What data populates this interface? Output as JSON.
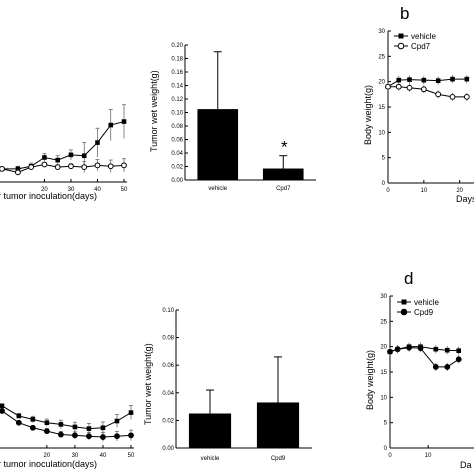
{
  "panel_letters": {
    "b": "b",
    "d": "d"
  },
  "chart_data": [
    {
      "id": "top-left-line",
      "type": "line",
      "xlabel": "r tumor inoculation(days)",
      "ylabel": "",
      "xlim": [
        4,
        50
      ],
      "ylim": [
        -0.5,
        14
      ],
      "x_ticks": [
        "20",
        "30",
        "40",
        "50"
      ],
      "series": [
        {
          "marker": "square",
          "x": [
            4,
            10,
            15,
            20,
            25,
            30,
            35,
            40,
            45,
            50
          ],
          "y": [
            1.0,
            1.0,
            1.3,
            2.3,
            2.0,
            2.6,
            2.5,
            4.0,
            6.0,
            6.4
          ]
        },
        {
          "marker": "circle",
          "x": [
            4,
            10,
            15,
            20,
            25,
            30,
            35,
            40,
            45,
            50
          ],
          "y": [
            1.0,
            0.6,
            1.2,
            1.5,
            1.2,
            1.3,
            1.2,
            1.4,
            1.3,
            1.4
          ]
        }
      ]
    },
    {
      "id": "top-bar",
      "type": "bar",
      "ylabel": "Tumor wet weight(g)",
      "ylim": [
        0,
        0.2
      ],
      "y_ticks": [
        "0.00",
        "0.02",
        "0.04",
        "0.06",
        "0.08",
        "0.10",
        "0.12",
        "0.14",
        "0.16",
        "0.18",
        "0.20"
      ],
      "categories": [
        "vehicle",
        "Cpd7"
      ],
      "values": [
        0.105,
        0.017
      ],
      "errors": [
        0.085,
        0.019
      ],
      "annotation": "*"
    },
    {
      "id": "top-right-body-weight",
      "type": "line",
      "ylabel": "Body weight(g)",
      "xlabel": "Days",
      "ylim": [
        0,
        30
      ],
      "y_ticks": [
        "0",
        "5",
        "10",
        "15",
        "20",
        "25",
        "30"
      ],
      "x_ticks": [
        "0",
        "10",
        "20"
      ],
      "legend": [
        "vehicle",
        "Cpd7"
      ],
      "series": [
        {
          "name": "vehicle",
          "marker": "square",
          "x": [
            0,
            3,
            6,
            10,
            14,
            18,
            22
          ],
          "y": [
            19.0,
            20.3,
            20.4,
            20.3,
            20.2,
            20.5,
            20.5
          ]
        },
        {
          "name": "Cpd7",
          "marker": "circle",
          "x": [
            0,
            3,
            6,
            10,
            14,
            18,
            22
          ],
          "y": [
            19.0,
            19.0,
            18.8,
            18.5,
            17.5,
            17.0,
            17.0
          ]
        }
      ]
    },
    {
      "id": "bottom-left-line",
      "type": "line",
      "xlabel": "r tumor inoculation(days)",
      "ylabel": "",
      "xlim": [
        4,
        50
      ],
      "ylim": [
        0,
        14
      ],
      "x_ticks": [
        "20",
        "30",
        "40",
        "50"
      ],
      "series": [
        {
          "marker": "square",
          "x": [
            4,
            10,
            15,
            20,
            25,
            30,
            35,
            40,
            45,
            50
          ],
          "y": [
            5.0,
            3.8,
            3.4,
            3.0,
            2.8,
            2.5,
            2.3,
            2.4,
            3.2,
            4.2
          ]
        },
        {
          "marker": "circle",
          "x": [
            4,
            10,
            15,
            20,
            25,
            30,
            35,
            40,
            45,
            50
          ],
          "y": [
            4.4,
            3.0,
            2.4,
            2.0,
            1.6,
            1.5,
            1.4,
            1.3,
            1.4,
            1.5
          ]
        }
      ]
    },
    {
      "id": "bottom-bar",
      "type": "bar",
      "ylabel": "Tumor wet weight(g)",
      "ylim": [
        0,
        0.1
      ],
      "y_ticks": [
        "0.00",
        "0.02",
        "0.04",
        "0.06",
        "0.08",
        "0.10"
      ],
      "categories": [
        "vehicle",
        "Cpd9"
      ],
      "values": [
        0.025,
        0.033
      ],
      "errors": [
        0.017,
        0.033
      ]
    },
    {
      "id": "bottom-right-body-weight",
      "type": "line",
      "ylabel": "Body weight(g)",
      "xlabel": "Da",
      "ylim": [
        0,
        30
      ],
      "y_ticks": [
        "0",
        "5",
        "10",
        "15",
        "20",
        "25",
        "30"
      ],
      "x_ticks": [
        "0",
        "10"
      ],
      "legend": [
        "vehicle",
        "Cpd9"
      ],
      "series": [
        {
          "name": "vehicle",
          "marker": "square",
          "x": [
            0,
            2,
            5,
            8,
            12,
            15,
            18
          ],
          "y": [
            19.0,
            19.5,
            20.0,
            20.0,
            19.5,
            19.3,
            19.2
          ]
        },
        {
          "name": "Cpd9",
          "marker": "circle",
          "x": [
            0,
            2,
            5,
            8,
            12,
            15,
            18
          ],
          "y": [
            19.0,
            19.5,
            19.8,
            19.7,
            16.0,
            16.0,
            17.5
          ]
        }
      ]
    }
  ]
}
